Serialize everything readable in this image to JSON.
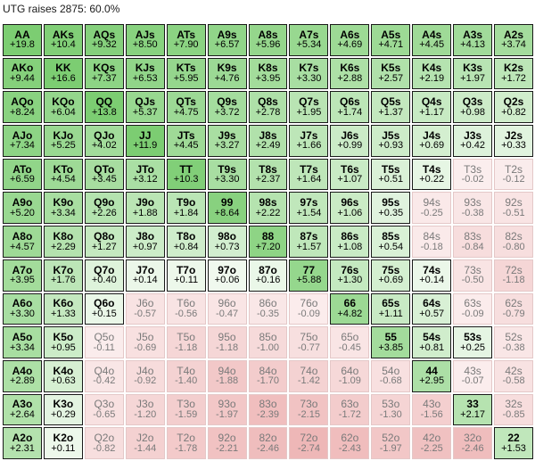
{
  "title": "UTG raises 2875: 60.0%",
  "colors": {
    "raise_strong": "#7ccd72",
    "raise_weak": "#f4fbf3",
    "fold_light": "#fbeeee",
    "fold_dark": "#eeb7b7",
    "border": "#1a1a1a"
  },
  "rows": [
    [
      [
        "AA",
        "+19.8"
      ],
      [
        "AKs",
        "+10.4"
      ],
      [
        "AQs",
        "+9.32"
      ],
      [
        "AJs",
        "+8.50"
      ],
      [
        "ATs",
        "+7.90"
      ],
      [
        "A9s",
        "+6.57"
      ],
      [
        "A8s",
        "+5.96"
      ],
      [
        "A7s",
        "+5.34"
      ],
      [
        "A6s",
        "+4.69"
      ],
      [
        "A5s",
        "+4.71"
      ],
      [
        "A4s",
        "+4.45"
      ],
      [
        "A3s",
        "+4.13"
      ],
      [
        "A2s",
        "+3.74"
      ]
    ],
    [
      [
        "AKo",
        "+9.44"
      ],
      [
        "KK",
        "+16.6"
      ],
      [
        "KQs",
        "+7.37"
      ],
      [
        "KJs",
        "+6.53"
      ],
      [
        "KTs",
        "+5.95"
      ],
      [
        "K9s",
        "+4.76"
      ],
      [
        "K8s",
        "+3.95"
      ],
      [
        "K7s",
        "+3.30"
      ],
      [
        "K6s",
        "+2.88"
      ],
      [
        "K5s",
        "+2.57"
      ],
      [
        "K4s",
        "+2.19"
      ],
      [
        "K3s",
        "+1.97"
      ],
      [
        "K2s",
        "+1.72"
      ]
    ],
    [
      [
        "AQo",
        "+8.24"
      ],
      [
        "KQo",
        "+6.04"
      ],
      [
        "QQ",
        "+13.8"
      ],
      [
        "QJs",
        "+5.37"
      ],
      [
        "QTs",
        "+4.75"
      ],
      [
        "Q9s",
        "+3.72"
      ],
      [
        "Q8s",
        "+2.78"
      ],
      [
        "Q7s",
        "+1.95"
      ],
      [
        "Q6s",
        "+1.74"
      ],
      [
        "Q5s",
        "+1.37"
      ],
      [
        "Q4s",
        "+1.17"
      ],
      [
        "Q3s",
        "+0.98"
      ],
      [
        "Q2s",
        "+0.82"
      ]
    ],
    [
      [
        "AJo",
        "+7.34"
      ],
      [
        "KJo",
        "+5.25"
      ],
      [
        "QJo",
        "+4.02"
      ],
      [
        "JJ",
        "+11.9"
      ],
      [
        "JTs",
        "+4.45"
      ],
      [
        "J9s",
        "+3.27"
      ],
      [
        "J8s",
        "+2.49"
      ],
      [
        "J7s",
        "+1.66"
      ],
      [
        "J6s",
        "+0.99"
      ],
      [
        "J5s",
        "+0.93"
      ],
      [
        "J4s",
        "+0.69"
      ],
      [
        "J3s",
        "+0.42"
      ],
      [
        "J2s",
        "+0.33"
      ]
    ],
    [
      [
        "ATo",
        "+6.59"
      ],
      [
        "KTo",
        "+4.54"
      ],
      [
        "QTo",
        "+3.45"
      ],
      [
        "JTo",
        "+3.12"
      ],
      [
        "TT",
        "+10.3"
      ],
      [
        "T9s",
        "+3.30"
      ],
      [
        "T8s",
        "+2.37"
      ],
      [
        "T7s",
        "+1.64"
      ],
      [
        "T6s",
        "+1.07"
      ],
      [
        "T5s",
        "+0.51"
      ],
      [
        "T4s",
        "+0.22"
      ],
      [
        "T3s",
        "-0.02"
      ],
      [
        "T2s",
        "-0.12"
      ]
    ],
    [
      [
        "A9o",
        "+5.20"
      ],
      [
        "K9o",
        "+3.34"
      ],
      [
        "Q9o",
        "+2.26"
      ],
      [
        "J9o",
        "+1.88"
      ],
      [
        "T9o",
        "+1.84"
      ],
      [
        "99",
        "+8.64"
      ],
      [
        "98s",
        "+2.22"
      ],
      [
        "97s",
        "+1.54"
      ],
      [
        "96s",
        "+1.06"
      ],
      [
        "95s",
        "+0.35"
      ],
      [
        "94s",
        "-0.25"
      ],
      [
        "93s",
        "-0.38"
      ],
      [
        "92s",
        "-0.51"
      ]
    ],
    [
      [
        "A8o",
        "+4.57"
      ],
      [
        "K8o",
        "+2.29"
      ],
      [
        "Q8o",
        "+1.27"
      ],
      [
        "J8o",
        "+0.97"
      ],
      [
        "T8o",
        "+0.84"
      ],
      [
        "98o",
        "+0.73"
      ],
      [
        "88",
        "+7.20"
      ],
      [
        "87s",
        "+1.57"
      ],
      [
        "86s",
        "+1.08"
      ],
      [
        "85s",
        "+0.54"
      ],
      [
        "84s",
        "-0.18"
      ],
      [
        "83s",
        "-0.84"
      ],
      [
        "82s",
        "-0.80"
      ]
    ],
    [
      [
        "A7o",
        "+3.95"
      ],
      [
        "K7o",
        "+1.76"
      ],
      [
        "Q7o",
        "+0.40"
      ],
      [
        "J7o",
        "+0.14"
      ],
      [
        "T7o",
        "+0.11"
      ],
      [
        "97o",
        "+0.06"
      ],
      [
        "87o",
        "+0.16"
      ],
      [
        "77",
        "+5.88"
      ],
      [
        "76s",
        "+1.30"
      ],
      [
        "75s",
        "+0.69"
      ],
      [
        "74s",
        "+0.14"
      ],
      [
        "73s",
        "-0.50"
      ],
      [
        "72s",
        "-1.18"
      ]
    ],
    [
      [
        "A6o",
        "+3.30"
      ],
      [
        "K6o",
        "+1.33"
      ],
      [
        "Q6o",
        "+0.15"
      ],
      [
        "J6o",
        "-0.57"
      ],
      [
        "T6o",
        "-0.56"
      ],
      [
        "96o",
        "-0.47"
      ],
      [
        "86o",
        "-0.35"
      ],
      [
        "76o",
        "-0.09"
      ],
      [
        "66",
        "+4.82"
      ],
      [
        "65s",
        "+1.11"
      ],
      [
        "64s",
        "+0.57"
      ],
      [
        "63s",
        "-0.09"
      ],
      [
        "62s",
        "-0.79"
      ]
    ],
    [
      [
        "A5o",
        "+3.34"
      ],
      [
        "K5o",
        "+0.95"
      ],
      [
        "Q5o",
        "-0.11"
      ],
      [
        "J5o",
        "-0.69"
      ],
      [
        "T5o",
        "-1.18"
      ],
      [
        "95o",
        "-1.18"
      ],
      [
        "85o",
        "-1.00"
      ],
      [
        "75o",
        "-0.77"
      ],
      [
        "65o",
        "-0.45"
      ],
      [
        "55",
        "+3.85"
      ],
      [
        "54s",
        "+0.81"
      ],
      [
        "53s",
        "+0.25"
      ],
      [
        "52s",
        "-0.38"
      ]
    ],
    [
      [
        "A4o",
        "+2.89"
      ],
      [
        "K4o",
        "+0.63"
      ],
      [
        "Q4o",
        "-0.42"
      ],
      [
        "J4o",
        "-0.92"
      ],
      [
        "T4o",
        "-1.40"
      ],
      [
        "94o",
        "-1.88"
      ],
      [
        "84o",
        "-1.70"
      ],
      [
        "74o",
        "-1.42"
      ],
      [
        "64o",
        "-1.09"
      ],
      [
        "54o",
        "-0.68"
      ],
      [
        "44",
        "+2.95"
      ],
      [
        "43s",
        "-0.07"
      ],
      [
        "42s",
        "-0.58"
      ]
    ],
    [
      [
        "A3o",
        "+2.64"
      ],
      [
        "K3o",
        "+0.29"
      ],
      [
        "Q3o",
        "-0.65"
      ],
      [
        "J3o",
        "-1.20"
      ],
      [
        "T3o",
        "-1.59"
      ],
      [
        "93o",
        "-1.97"
      ],
      [
        "83o",
        "-2.39"
      ],
      [
        "73o",
        "-2.15"
      ],
      [
        "63o",
        "-1.72"
      ],
      [
        "53o",
        "-1.30"
      ],
      [
        "43o",
        "-1.56"
      ],
      [
        "33",
        "+2.17"
      ],
      [
        "32s",
        "-0.85"
      ]
    ],
    [
      [
        "A2o",
        "+2.31"
      ],
      [
        "K2o",
        "+0.11"
      ],
      [
        "Q2o",
        "-0.82"
      ],
      [
        "J2o",
        "-1.44"
      ],
      [
        "T2o",
        "-1.78"
      ],
      [
        "92o",
        "-2.21"
      ],
      [
        "82o",
        "-2.46"
      ],
      [
        "72o",
        "-2.74"
      ],
      [
        "62o",
        "-2.43"
      ],
      [
        "52o",
        "-1.97"
      ],
      [
        "42o",
        "-2.25"
      ],
      [
        "32o",
        "-2.46"
      ],
      [
        "22",
        "+1.53"
      ]
    ]
  ]
}
